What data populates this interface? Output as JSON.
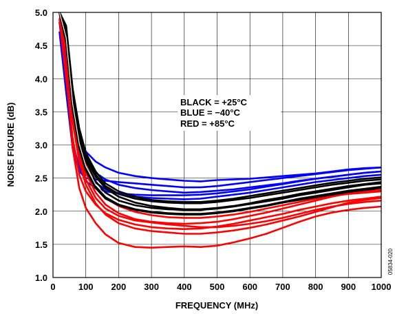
{
  "chart_data": {
    "type": "line",
    "xlabel": "FREQUENCY (MHz)",
    "ylabel": "NOISE FIGURE (dB)",
    "xlim": [
      0,
      1000
    ],
    "ylim": [
      1.0,
      5.0
    ],
    "xticks": [
      0,
      100,
      200,
      300,
      400,
      500,
      600,
      700,
      800,
      900,
      1000
    ],
    "yticks": [
      "1.0",
      "1.5",
      "2.0",
      "2.5",
      "3.0",
      "3.5",
      "4.0",
      "4.5",
      "5.0"
    ],
    "grid": true,
    "legend_lines": [
      "BLACK = +25°C",
      "BLUE = −40°C",
      "RED = +85°C"
    ],
    "legend_placement": "center",
    "figure_id": "05834-020",
    "x": [
      20,
      40,
      60,
      80,
      100,
      130,
      160,
      200,
      250,
      300,
      350,
      400,
      450,
      500,
      550,
      600,
      650,
      700,
      750,
      800,
      850,
      900,
      950,
      1000
    ],
    "series": [
      {
        "color": "#0000ff",
        "values": [
          5.0,
          4.55,
          3.7,
          3.2,
          2.9,
          2.75,
          2.66,
          2.58,
          2.53,
          2.5,
          2.48,
          2.46,
          2.45,
          2.47,
          2.48,
          2.49,
          2.51,
          2.53,
          2.55,
          2.57,
          2.6,
          2.63,
          2.65,
          2.66
        ]
      },
      {
        "color": "#0000ff",
        "values": [
          5.0,
          4.45,
          3.55,
          3.05,
          2.75,
          2.58,
          2.48,
          2.4,
          2.35,
          2.32,
          2.3,
          2.28,
          2.29,
          2.31,
          2.33,
          2.36,
          2.39,
          2.42,
          2.46,
          2.49,
          2.52,
          2.55,
          2.58,
          2.6
        ]
      },
      {
        "color": "#0000ff",
        "values": [
          5.0,
          4.3,
          3.35,
          2.85,
          2.58,
          2.43,
          2.33,
          2.27,
          2.22,
          2.2,
          2.19,
          2.18,
          2.19,
          2.22,
          2.25,
          2.28,
          2.32,
          2.36,
          2.4,
          2.44,
          2.47,
          2.5,
          2.53,
          2.55
        ]
      },
      {
        "color": "#0000ff",
        "values": [
          4.85,
          3.95,
          3.05,
          2.65,
          2.45,
          2.35,
          2.3,
          2.27,
          2.25,
          2.24,
          2.24,
          2.24,
          2.25,
          2.27,
          2.3,
          2.33,
          2.37,
          2.41,
          2.45,
          2.49,
          2.52,
          2.55,
          2.58,
          2.6
        ]
      },
      {
        "color": "#0000ff",
        "values": [
          4.7,
          3.8,
          2.95,
          2.6,
          2.5,
          2.48,
          2.46,
          2.44,
          2.42,
          2.4,
          2.38,
          2.36,
          2.36,
          2.38,
          2.41,
          2.44,
          2.47,
          2.5,
          2.53,
          2.56,
          2.59,
          2.62,
          2.64,
          2.66
        ]
      },
      {
        "color": "#ff0000",
        "values": [
          5.0,
          4.1,
          2.95,
          2.35,
          2.05,
          1.82,
          1.65,
          1.52,
          1.46,
          1.45,
          1.46,
          1.47,
          1.46,
          1.48,
          1.53,
          1.59,
          1.66,
          1.75,
          1.84,
          1.92,
          1.98,
          2.02,
          2.05,
          2.07
        ]
      },
      {
        "color": "#ff0000",
        "values": [
          5.0,
          4.4,
          3.35,
          2.75,
          2.4,
          2.12,
          1.95,
          1.82,
          1.74,
          1.7,
          1.68,
          1.66,
          1.66,
          1.68,
          1.71,
          1.75,
          1.8,
          1.86,
          1.92,
          1.99,
          2.06,
          2.13,
          2.17,
          2.2
        ]
      },
      {
        "color": "#ff0000",
        "values": [
          5.0,
          4.55,
          3.55,
          2.95,
          2.58,
          2.28,
          2.1,
          1.97,
          1.88,
          1.84,
          1.82,
          1.81,
          1.82,
          1.84,
          1.88,
          1.93,
          1.98,
          2.04,
          2.1,
          2.16,
          2.22,
          2.27,
          2.3,
          2.32
        ]
      },
      {
        "color": "#ff0000",
        "values": [
          5.0,
          4.6,
          3.65,
          3.05,
          2.68,
          2.38,
          2.2,
          2.08,
          1.99,
          1.94,
          1.91,
          1.9,
          1.9,
          1.92,
          1.95,
          1.99,
          2.04,
          2.09,
          2.14,
          2.19,
          2.23,
          2.26,
          2.28,
          2.3
        ]
      },
      {
        "color": "#ff0000",
        "values": [
          4.9,
          4.0,
          3.1,
          2.55,
          2.3,
          2.1,
          1.97,
          1.87,
          1.8,
          1.76,
          1.74,
          1.73,
          1.74,
          1.77,
          1.81,
          1.86,
          1.91,
          1.96,
          2.02,
          2.07,
          2.12,
          2.16,
          2.19,
          2.22
        ]
      },
      {
        "color": "#ff0000",
        "values": [
          5.0,
          4.5,
          3.45,
          2.85,
          2.48,
          2.2,
          2.04,
          1.93,
          1.86,
          1.83,
          1.8,
          1.78,
          1.76,
          1.76,
          1.78,
          1.81,
          1.85,
          1.9,
          1.96,
          2.02,
          2.07,
          2.11,
          2.14,
          2.16
        ]
      },
      {
        "color": "#000000",
        "values": [
          5.0,
          4.75,
          3.8,
          3.2,
          2.85,
          2.55,
          2.38,
          2.26,
          2.19,
          2.15,
          2.13,
          2.12,
          2.12,
          2.14,
          2.17,
          2.2,
          2.24,
          2.28,
          2.32,
          2.36,
          2.4,
          2.43,
          2.46,
          2.48
        ]
      },
      {
        "color": "#000000",
        "values": [
          5.0,
          4.65,
          3.7,
          3.1,
          2.75,
          2.45,
          2.28,
          2.16,
          2.09,
          2.05,
          2.03,
          2.02,
          2.02,
          2.04,
          2.07,
          2.11,
          2.15,
          2.19,
          2.24,
          2.28,
          2.32,
          2.36,
          2.4,
          2.42
        ]
      },
      {
        "color": "#000000",
        "values": [
          5.0,
          4.6,
          3.6,
          3.0,
          2.66,
          2.38,
          2.21,
          2.1,
          2.03,
          1.99,
          1.97,
          1.96,
          1.96,
          1.98,
          2.01,
          2.05,
          2.09,
          2.14,
          2.19,
          2.23,
          2.27,
          2.31,
          2.34,
          2.37
        ]
      },
      {
        "color": "#000000",
        "values": [
          5.0,
          4.7,
          3.75,
          3.15,
          2.8,
          2.52,
          2.35,
          2.22,
          2.13,
          2.08,
          2.05,
          2.03,
          2.03,
          2.05,
          2.08,
          2.12,
          2.17,
          2.21,
          2.26,
          2.3,
          2.34,
          2.38,
          2.41,
          2.44
        ]
      },
      {
        "color": "#000000",
        "values": [
          5.0,
          4.55,
          3.55,
          2.95,
          2.62,
          2.35,
          2.19,
          2.09,
          2.02,
          1.98,
          1.96,
          1.95,
          1.95,
          1.97,
          2.0,
          2.04,
          2.08,
          2.13,
          2.17,
          2.21,
          2.25,
          2.29,
          2.32,
          2.35
        ]
      },
      {
        "color": "#000000",
        "values": [
          5.0,
          4.8,
          3.85,
          3.25,
          2.88,
          2.6,
          2.42,
          2.3,
          2.22,
          2.17,
          2.15,
          2.14,
          2.14,
          2.16,
          2.19,
          2.23,
          2.27,
          2.31,
          2.35,
          2.39,
          2.43,
          2.46,
          2.49,
          2.51
        ]
      },
      {
        "color": "#ffffff",
        "values": [
          5.0,
          4.62,
          3.62,
          3.02,
          2.68,
          2.4,
          2.24,
          2.13,
          2.06,
          2.02,
          2.0,
          1.99,
          1.99,
          2.01,
          2.04,
          2.08,
          2.12,
          2.16,
          2.21,
          2.25,
          2.29,
          2.33,
          2.36,
          2.39
        ]
      }
    ]
  }
}
